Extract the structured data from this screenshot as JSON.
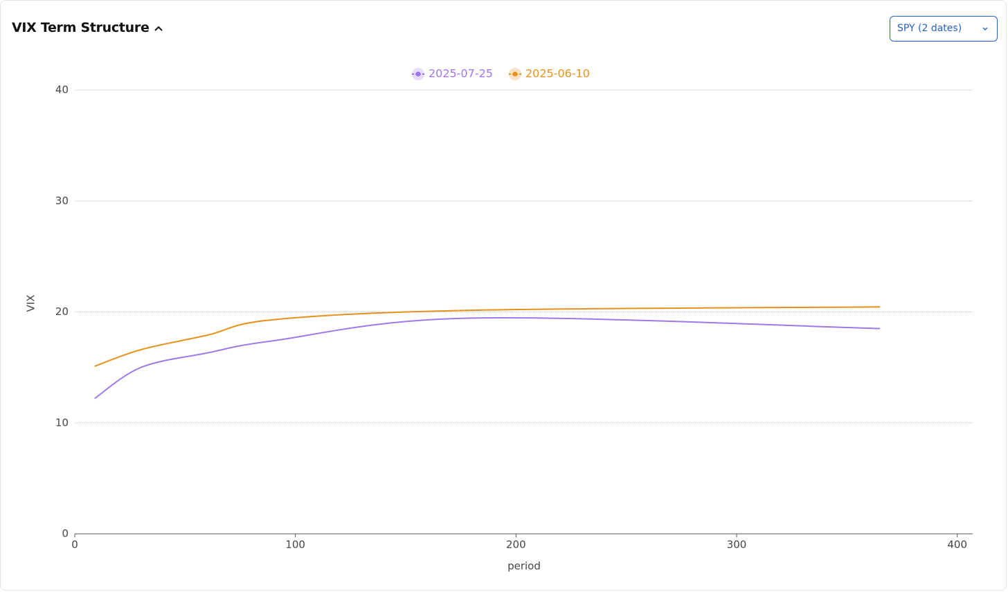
{
  "header": {
    "title": "VIX Term Structure",
    "dropdown": "SPY (2 dates)"
  },
  "chart_data": {
    "type": "line",
    "x": [
      9,
      30,
      60,
      90,
      180,
      365
    ],
    "series": [
      {
        "name": "2025-07-25",
        "color": "#a077e8",
        "values": [
          12.2,
          15.0,
          16.3,
          17.4,
          19.45,
          18.5
        ]
      },
      {
        "name": "2025-06-10",
        "color": "#e8901a",
        "values": [
          15.1,
          16.6,
          17.9,
          19.3,
          20.15,
          20.45
        ]
      }
    ],
    "xlim": [
      0,
      407
    ],
    "ylim": [
      0,
      40
    ],
    "xticks": [
      0,
      100,
      200,
      300,
      400
    ],
    "yticks": [
      0,
      10,
      20,
      30,
      40
    ],
    "xlabel": "period",
    "ylabel": "VIX",
    "grid": true,
    "legend": "top"
  }
}
